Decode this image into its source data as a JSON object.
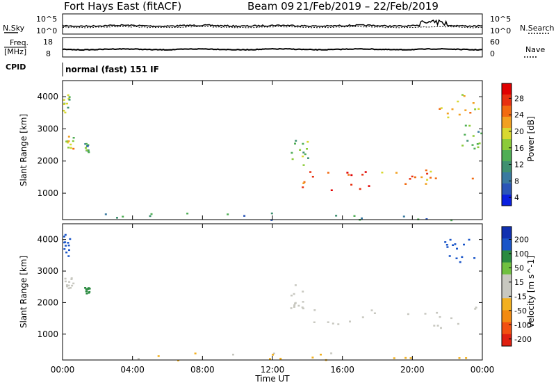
{
  "header": {
    "station": "Fort Hays East (fitACF)",
    "beam": "Beam 09",
    "date_range": "21/Feb/2019 – 22/Feb/2019"
  },
  "strip_labels": {
    "left_top": "N.Sky",
    "left_mid_1": "Freq.",
    "left_mid_2": "[MHz]",
    "left_cpid": "CPID",
    "right_top": "N.Search",
    "right_mid": "Nave",
    "cpid_text": "normal (fast) 151 IF"
  },
  "strip_ticks": {
    "nsky_left": [
      "10^5",
      "10^0"
    ],
    "nsky_right": [
      "10^5",
      "10^0"
    ],
    "freq_left": [
      "18",
      "8"
    ],
    "freq_right": [
      "60",
      "0"
    ]
  },
  "chart_data": [
    {
      "type": "heatmap",
      "name": "power",
      "ylabel": "Slant Range [km]",
      "xlabel": "Time UT",
      "x_ticks": [
        "00:00",
        "04:00",
        "08:00",
        "12:00",
        "16:00",
        "20:00",
        "00:00"
      ],
      "xlim_hours": [
        0,
        24
      ],
      "y_ticks": [
        1000,
        2000,
        3000,
        4000
      ],
      "ylim": [
        180,
        4500
      ],
      "colorbar": {
        "label": "Power [dB]",
        "ticks": [
          "28",
          "24",
          "20",
          "16",
          "12",
          "8",
          "4"
        ],
        "range": [
          0,
          30
        ],
        "colors": [
          "#0a1fe0",
          "#2a55b8",
          "#3a7aa0",
          "#3f9070",
          "#4fae55",
          "#8ccb3a",
          "#d8d830",
          "#f2a020",
          "#f26a10",
          "#e83010",
          "#e00000"
        ]
      },
      "regions": [
        {
          "t0": 0.1,
          "t1": 0.6,
          "r0": 2400,
          "r1": 2800,
          "level": 18
        },
        {
          "t0": 0.0,
          "t1": 0.4,
          "r0": 3500,
          "r1": 4200,
          "level": 14
        },
        {
          "t0": 1.2,
          "t1": 1.5,
          "r0": 2300,
          "r1": 2600,
          "level": 10
        },
        {
          "t0": 13.0,
          "t1": 14.0,
          "r0": 1900,
          "r1": 2700,
          "level": 14
        },
        {
          "t0": 13.5,
          "t1": 17.5,
          "r0": 1100,
          "r1": 1700,
          "level": 26
        },
        {
          "t0": 17.5,
          "t1": 24.0,
          "r0": 1300,
          "r1": 1750,
          "level": 22
        },
        {
          "t0": 21.5,
          "t1": 23.8,
          "r0": 3300,
          "r1": 4100,
          "level": 18
        },
        {
          "t0": 22.8,
          "t1": 23.9,
          "r0": 2400,
          "r1": 3200,
          "level": 12
        },
        {
          "t0": 0.0,
          "t1": 24.0,
          "r0": 180,
          "r1": 420,
          "level": 8
        }
      ]
    },
    {
      "type": "heatmap",
      "name": "velocity",
      "ylabel": "Slant Range [km]",
      "xlabel": "Time UT",
      "x_ticks": [
        "00:00",
        "04:00",
        "08:00",
        "12:00",
        "16:00",
        "20:00",
        "00:00"
      ],
      "xlim_hours": [
        0,
        24
      ],
      "y_ticks": [
        1000,
        2000,
        3000,
        4000
      ],
      "ylim": [
        180,
        4500
      ],
      "colorbar": {
        "label": "Velocity [m s^-1]",
        "ticks": [
          "200",
          "100",
          "50",
          "15",
          "-15",
          "-50",
          "-100",
          "-200"
        ],
        "range": [
          -250,
          250
        ],
        "colors": [
          "#1030b0",
          "#1a55c8",
          "#2a8a40",
          "#70c040",
          "#c8c8c0",
          "#c8c8c0",
          "#f2b020",
          "#f28a10",
          "#f25010",
          "#e02010"
        ]
      },
      "regions": [
        {
          "t0": 0.1,
          "t1": 0.6,
          "r0": 2400,
          "r1": 2800,
          "level": 0
        },
        {
          "t0": 0.0,
          "t1": 0.4,
          "r0": 3500,
          "r1": 4200,
          "level": 180
        },
        {
          "t0": 1.2,
          "t1": 1.5,
          "r0": 2300,
          "r1": 2500,
          "level": 120
        },
        {
          "t0": 13.0,
          "t1": 14.0,
          "r0": 1800,
          "r1": 2600,
          "level": 0
        },
        {
          "t0": 13.5,
          "t1": 24.0,
          "r0": 1200,
          "r1": 1900,
          "level": 0
        },
        {
          "t0": 21.8,
          "t1": 23.8,
          "r0": 3300,
          "r1": 4100,
          "level": 180
        },
        {
          "t0": 0.0,
          "t1": 24.0,
          "r0": 180,
          "r1": 420,
          "level": -60
        }
      ]
    }
  ]
}
